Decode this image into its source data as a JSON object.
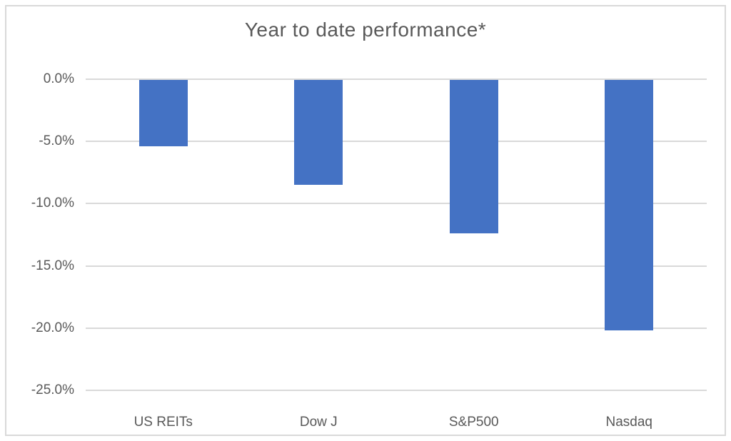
{
  "chart_data": {
    "type": "bar",
    "title": "Year to date performance*",
    "categories": [
      "US REITs",
      "Dow J",
      "S&P500",
      "Nasdaq"
    ],
    "values": [
      -5.4,
      -8.5,
      -12.4,
      -20.2
    ],
    "unit": "%",
    "xlabel": "",
    "ylabel": "",
    "ylim": [
      -25,
      0
    ],
    "ytick_step": 5,
    "ytick_labels": [
      "0.0%",
      "-5.0%",
      "-10.0%",
      "-15.0%",
      "-20.0%",
      "-25.0%"
    ],
    "grid": "horizontal",
    "legend_position": "none",
    "bar_color": "#4472C4",
    "gridline_color": "#D9D9D9",
    "frame_color": "#D9D9D9",
    "text_color": "#595959",
    "background_color": "#FFFFFF"
  }
}
